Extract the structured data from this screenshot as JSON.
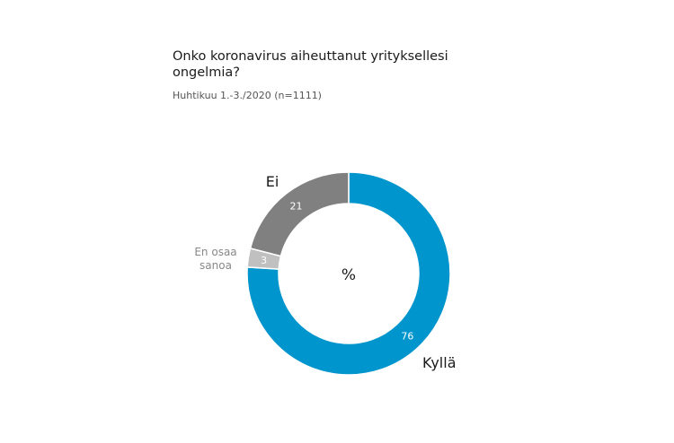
{
  "title": "Onko koronavirus aiheuttanut yrityksellesi ongelmia?",
  "subtitle": "Huhtikuu 1.-3./2020 (n=1111)",
  "chart_data": {
    "type": "pie",
    "title": "Onko koronavirus aiheuttanut yrityksellesi ongelmia?",
    "subtitle": "Huhtikuu 1.-3./2020 (n=1111)",
    "center_label": "%",
    "slices": [
      {
        "name": "Kyllä",
        "value": 76,
        "label": "76",
        "color": "#0095cc"
      },
      {
        "name": "En osaa sanoa",
        "value": 3,
        "label": "3",
        "color": "#c0c0c0",
        "name_lines": [
          "En osaa",
          "sanoa"
        ]
      },
      {
        "name": "Ei",
        "value": 21,
        "label": "21",
        "color": "#808080"
      }
    ]
  }
}
